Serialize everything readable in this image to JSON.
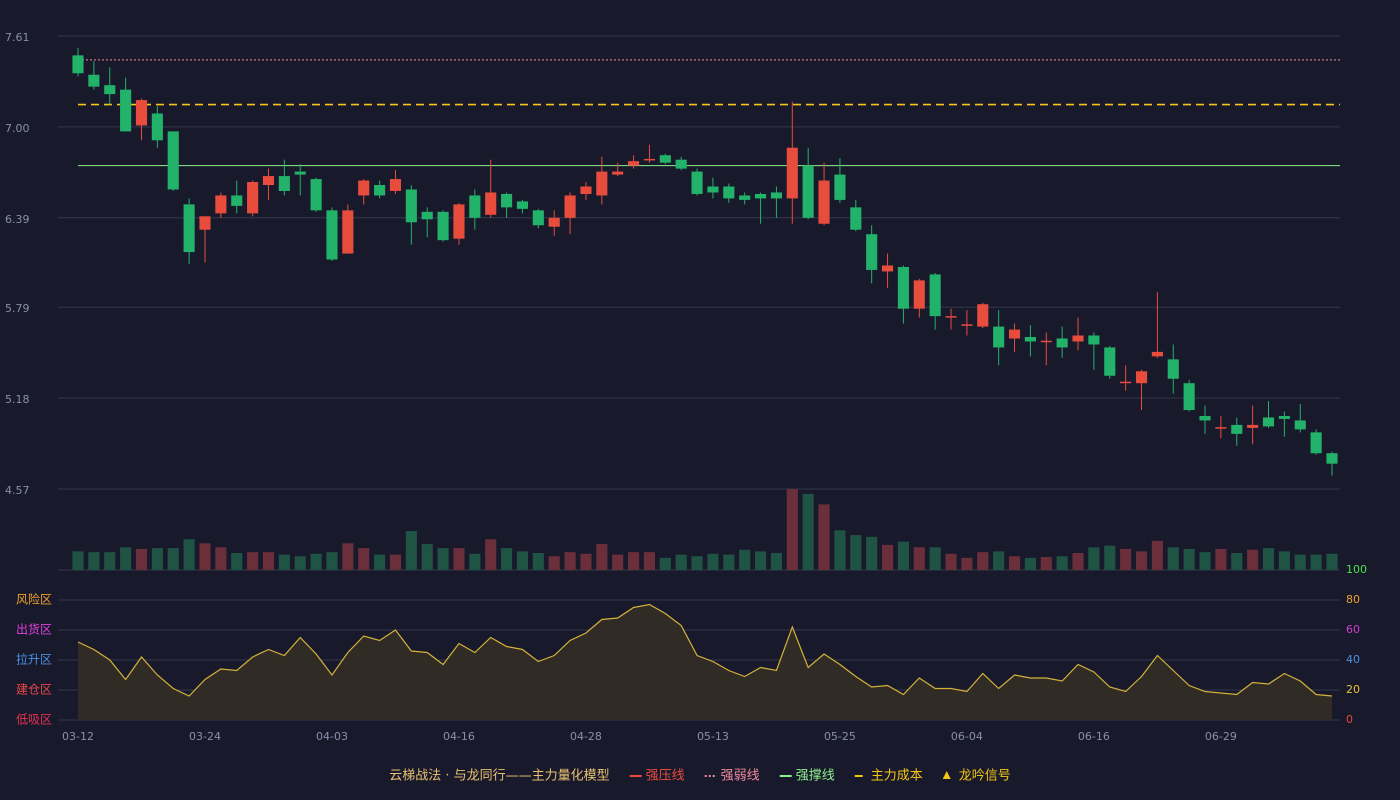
{
  "chart_data": {
    "type": "candlestick",
    "categories": [
      "03-12",
      null,
      null,
      null,
      null,
      null,
      null,
      null,
      "03-24",
      null,
      null,
      null,
      null,
      null,
      null,
      null,
      "04-03",
      null,
      null,
      null,
      null,
      null,
      null,
      null,
      "04-16",
      null,
      null,
      null,
      null,
      null,
      null,
      null,
      "04-28",
      null,
      null,
      null,
      null,
      null,
      null,
      null,
      "05-13",
      null,
      null,
      null,
      null,
      null,
      null,
      null,
      "05-25",
      null,
      null,
      null,
      null,
      null,
      null,
      null,
      "06-04",
      null,
      null,
      null,
      null,
      null,
      null,
      null,
      "06-16",
      null,
      null,
      null,
      null,
      null,
      null,
      null,
      "06-29",
      null,
      null,
      null,
      null,
      null,
      null,
      null
    ],
    "open": [
      7.48,
      7.35,
      7.28,
      7.25,
      7.01,
      7.09,
      6.97,
      6.48,
      6.31,
      6.42,
      6.54,
      6.42,
      6.61,
      6.67,
      6.7,
      6.65,
      6.44,
      6.15,
      6.54,
      6.61,
      6.57,
      6.58,
      6.43,
      6.43,
      6.25,
      6.54,
      6.41,
      6.55,
      6.5,
      6.44,
      6.33,
      6.39,
      6.55,
      6.54,
      6.68,
      6.74,
      6.775,
      6.81,
      6.78,
      6.7,
      6.6,
      6.6,
      6.54,
      6.55,
      6.56,
      6.52,
      6.74,
      6.35,
      6.68,
      6.46,
      6.28,
      6.03,
      6.06,
      5.78,
      6.01,
      5.72,
      5.665,
      5.66,
      5.66,
      5.58,
      5.59,
      5.555,
      5.58,
      5.56,
      5.6,
      5.52,
      5.28,
      5.28,
      5.46,
      5.44,
      5.28,
      5.06,
      4.975,
      5.0,
      4.98,
      5.05,
      5.06,
      5.03,
      4.95,
      4.81
    ],
    "high": [
      7.53,
      7.44,
      7.4,
      7.33,
      7.19,
      7.14,
      6.97,
      6.52,
      6.4,
      6.56,
      6.64,
      6.64,
      6.72,
      6.78,
      6.75,
      6.66,
      6.46,
      6.48,
      6.65,
      6.64,
      6.71,
      6.61,
      6.46,
      6.44,
      6.49,
      6.58,
      6.78,
      6.56,
      6.51,
      6.45,
      6.44,
      6.56,
      6.63,
      6.8,
      6.76,
      6.81,
      6.88,
      6.82,
      6.8,
      6.72,
      6.66,
      6.62,
      6.56,
      6.56,
      6.6,
      7.17,
      6.86,
      6.76,
      6.79,
      6.51,
      6.34,
      6.15,
      6.07,
      5.98,
      6.02,
      5.78,
      5.77,
      5.82,
      5.77,
      5.68,
      5.67,
      5.62,
      5.66,
      5.72,
      5.62,
      5.53,
      5.4,
      5.37,
      5.89,
      5.54,
      5.3,
      5.13,
      5.06,
      5.05,
      5.13,
      5.16,
      5.09,
      5.14,
      4.97,
      4.82
    ],
    "low": [
      7.34,
      7.25,
      7.15,
      6.97,
      6.91,
      6.86,
      6.57,
      6.08,
      6.09,
      6.39,
      6.42,
      6.4,
      6.51,
      6.54,
      6.54,
      6.43,
      6.1,
      6.15,
      6.48,
      6.52,
      6.55,
      6.21,
      6.26,
      6.23,
      6.21,
      6.31,
      6.39,
      6.39,
      6.42,
      6.32,
      6.27,
      6.28,
      6.51,
      6.48,
      6.67,
      6.72,
      6.76,
      6.75,
      6.71,
      6.54,
      6.52,
      6.49,
      6.48,
      6.35,
      6.39,
      6.35,
      6.38,
      6.34,
      6.49,
      6.3,
      5.95,
      5.92,
      5.68,
      5.72,
      5.64,
      5.64,
      5.6,
      5.65,
      5.4,
      5.49,
      5.46,
      5.4,
      5.45,
      5.5,
      5.37,
      5.31,
      5.23,
      5.1,
      5.45,
      5.21,
      5.09,
      4.94,
      4.91,
      4.86,
      4.87,
      4.98,
      4.92,
      4.95,
      4.8,
      4.66
    ],
    "close": [
      7.36,
      7.27,
      7.22,
      6.97,
      7.18,
      6.91,
      6.58,
      6.16,
      6.4,
      6.54,
      6.47,
      6.63,
      6.67,
      6.57,
      6.68,
      6.44,
      6.11,
      6.44,
      6.64,
      6.54,
      6.65,
      6.36,
      6.38,
      6.24,
      6.48,
      6.39,
      6.56,
      6.46,
      6.45,
      6.34,
      6.39,
      6.54,
      6.6,
      6.7,
      6.7,
      6.77,
      6.785,
      6.76,
      6.72,
      6.55,
      6.56,
      6.52,
      6.51,
      6.52,
      6.52,
      6.86,
      6.39,
      6.64,
      6.51,
      6.31,
      6.04,
      6.07,
      5.78,
      5.97,
      5.73,
      5.73,
      5.675,
      5.81,
      5.52,
      5.64,
      5.56,
      5.565,
      5.52,
      5.6,
      5.54,
      5.33,
      5.29,
      5.36,
      5.49,
      5.31,
      5.1,
      5.03,
      4.985,
      4.94,
      5.0,
      4.99,
      5.04,
      4.97,
      4.81,
      4.74
    ],
    "up_color": "#e84c3d",
    "down_color": "#22b26a",
    "ylim": [
      4.57,
      7.61
    ],
    "yticks": [
      4.57,
      5.18,
      5.79,
      6.39,
      {
        "value": 7.0,
        "label": "7.00"
      },
      7.61
    ],
    "grid": true,
    "lines": [
      {
        "name": "强压线",
        "color": "#e84c3d",
        "style": "solid"
      },
      {
        "name": "强弱线",
        "color": "#f08aa0",
        "style": "dotted",
        "value": 7.45
      },
      {
        "name": "强撑线",
        "color": "#8cf08c",
        "style": "solid",
        "value": 6.74
      },
      {
        "name": "主力成本",
        "color": "#f5c518",
        "style": "dashed",
        "value": 7.15
      },
      {
        "name": "龙吟信号",
        "color": "#f5c518",
        "style": "triangle"
      }
    ],
    "volume": {
      "ylim": [
        0,
        100
      ],
      "up_color": "#6b2f3b",
      "down_color": "#1f5444",
      "values": [
        23,
        22,
        22,
        28,
        26,
        27,
        27,
        38,
        33,
        28,
        21,
        22,
        22,
        19,
        17,
        20,
        22,
        33,
        27,
        19,
        19,
        48,
        32,
        27,
        27,
        20,
        38,
        27,
        23,
        21,
        17,
        22,
        20,
        32,
        19,
        22,
        22,
        15,
        19,
        17,
        20,
        19,
        25,
        23,
        21,
        100,
        94,
        81,
        49,
        43,
        41,
        31,
        35,
        28,
        28,
        20,
        15,
        22,
        23,
        17,
        15,
        16,
        17,
        21,
        28,
        30,
        26,
        23,
        36,
        28,
        26,
        22,
        26,
        21,
        25,
        27,
        23,
        19,
        19,
        20
      ]
    },
    "indicator": {
      "ylim": [
        0,
        100
      ],
      "color": "#d4b23a",
      "fill": "#302b25",
      "values": [
        52,
        47,
        40,
        27,
        42,
        30,
        21,
        16,
        27,
        34,
        33,
        42,
        47,
        43,
        55,
        44,
        30,
        45,
        56,
        53,
        60,
        46,
        45,
        37,
        51,
        45,
        55,
        49,
        47,
        39,
        43,
        53,
        58,
        67,
        68,
        75,
        77,
        71,
        63,
        43,
        39,
        33,
        29,
        35,
        33,
        62,
        35,
        44,
        37,
        29,
        22,
        23,
        17,
        28,
        21,
        21,
        19,
        31,
        21,
        30,
        28,
        28,
        26,
        37,
        32,
        22,
        19,
        29,
        43,
        33,
        23,
        19,
        18,
        17,
        25,
        24,
        31,
        26,
        17,
        16
      ],
      "yticks": [
        0,
        20,
        40,
        60,
        80,
        100
      ],
      "ytick_colors": [
        "#e8483f",
        "#e8c040",
        "#4a90e2",
        "#d040d0",
        "#f0a030",
        "#4ce04c"
      ],
      "zones": [
        {
          "label": "风险区",
          "value": 80,
          "color": "#f0a030"
        },
        {
          "label": "出货区",
          "value": 60,
          "color": "#e040e0"
        },
        {
          "label": "拉升区",
          "value": 40,
          "color": "#4a90e2"
        },
        {
          "label": "建仓区",
          "value": 20,
          "color": "#e84848"
        },
        {
          "label": "低吸区",
          "value": 0,
          "color": "#e83050"
        }
      ]
    },
    "legend_title": "云梯战法 · 与龙同行——主力量化模型"
  }
}
